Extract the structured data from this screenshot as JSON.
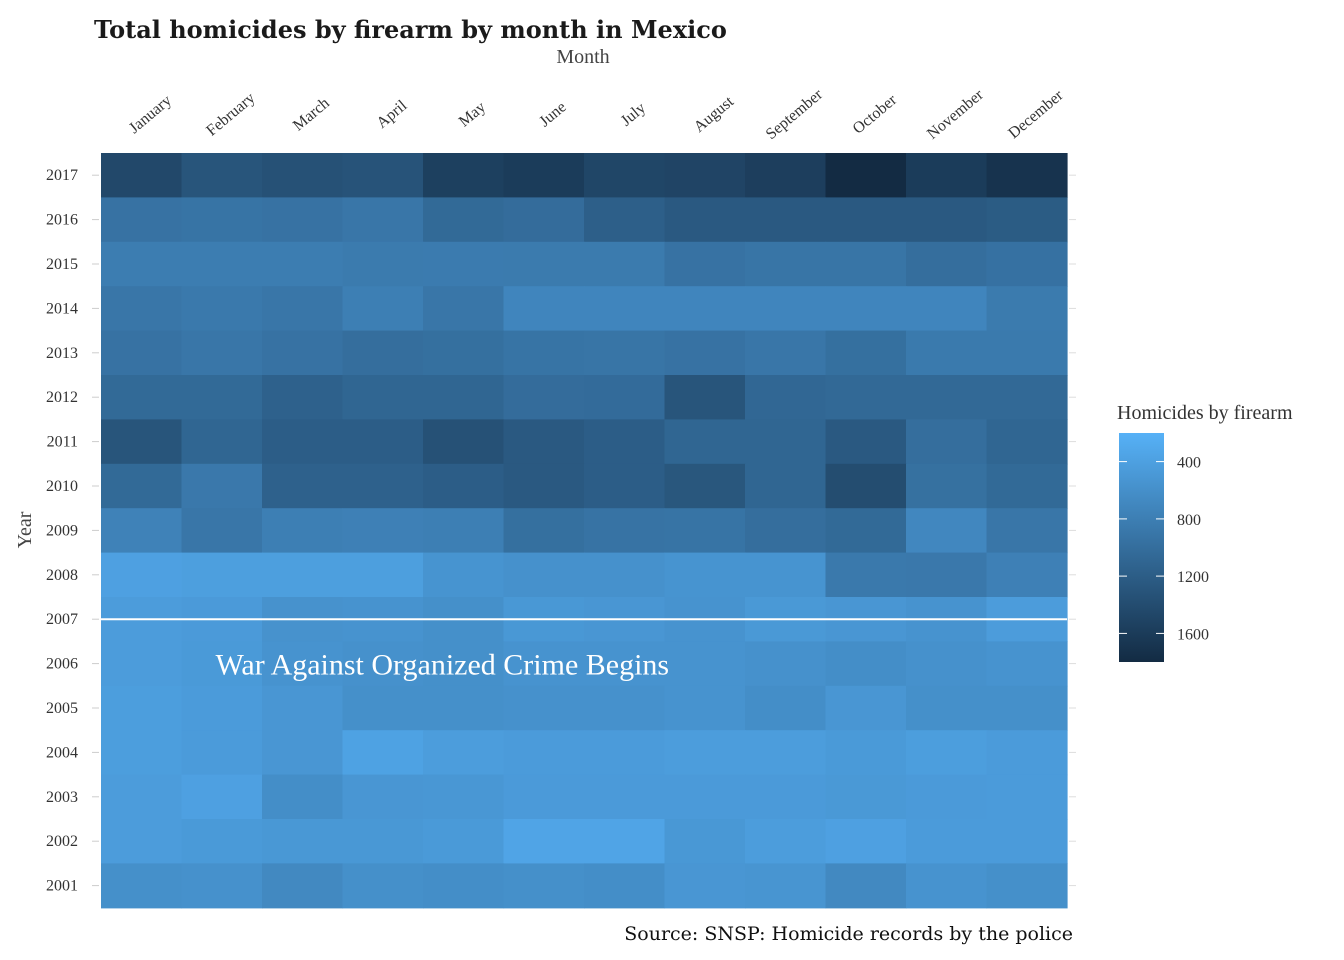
{
  "chart_data": {
    "type": "heatmap",
    "title": "Total homicides by firearm by month in Mexico",
    "xlabel": "Month",
    "ylabel": "Year",
    "x_axis_position": "top",
    "months": [
      "January",
      "February",
      "March",
      "April",
      "May",
      "June",
      "July",
      "August",
      "September",
      "October",
      "November",
      "December"
    ],
    "years": [
      2017,
      2016,
      2015,
      2014,
      2013,
      2012,
      2011,
      2010,
      2009,
      2008,
      2007,
      2006,
      2005,
      2004,
      2003,
      2002,
      2001
    ],
    "values": [
      [
        1450,
        1300,
        1350,
        1320,
        1550,
        1600,
        1480,
        1500,
        1570,
        1800,
        1600,
        1700
      ],
      [
        950,
        930,
        950,
        900,
        1050,
        1020,
        1180,
        1250,
        1250,
        1250,
        1250,
        1220
      ],
      [
        820,
        820,
        820,
        850,
        840,
        850,
        850,
        950,
        920,
        920,
        1000,
        960
      ],
      [
        900,
        870,
        900,
        800,
        900,
        720,
        720,
        720,
        720,
        720,
        720,
        850
      ],
      [
        950,
        900,
        950,
        1000,
        980,
        930,
        920,
        950,
        900,
        980,
        860,
        860
      ],
      [
        1050,
        1050,
        1150,
        1100,
        1100,
        1020,
        1030,
        1300,
        1080,
        1060,
        1060,
        1060
      ],
      [
        1300,
        1100,
        1200,
        1200,
        1350,
        1250,
        1200,
        1100,
        1100,
        1250,
        1000,
        1100
      ],
      [
        1050,
        880,
        1150,
        1150,
        1200,
        1250,
        1200,
        1280,
        1100,
        1400,
        970,
        1050
      ],
      [
        760,
        900,
        800,
        780,
        800,
        980,
        940,
        930,
        1000,
        1050,
        700,
        900
      ],
      [
        400,
        420,
        420,
        420,
        550,
        580,
        580,
        550,
        550,
        870,
        880,
        780
      ],
      [
        450,
        470,
        570,
        560,
        600,
        500,
        520,
        560,
        490,
        520,
        560,
        450
      ],
      [
        450,
        480,
        560,
        580,
        600,
        560,
        560,
        560,
        580,
        620,
        580,
        560
      ],
      [
        430,
        460,
        520,
        600,
        600,
        580,
        580,
        560,
        620,
        520,
        600,
        600
      ],
      [
        430,
        460,
        520,
        380,
        440,
        460,
        460,
        440,
        440,
        480,
        430,
        460
      ],
      [
        450,
        400,
        620,
        520,
        510,
        470,
        470,
        470,
        470,
        490,
        470,
        460
      ],
      [
        450,
        480,
        500,
        500,
        480,
        350,
        350,
        500,
        440,
        400,
        460,
        460
      ],
      [
        600,
        580,
        680,
        600,
        620,
        600,
        620,
        520,
        540,
        680,
        560,
        600
      ]
    ],
    "color_scale": {
      "low": 200,
      "high": 1800,
      "low_color": "#56b1f7",
      "high_color": "#132b43"
    },
    "legend": {
      "title": "Homicides by firearm",
      "ticks": [
        400,
        800,
        1200,
        1600
      ],
      "position": "right"
    },
    "annotations": [
      {
        "type": "hline",
        "year": 2007,
        "color": "#ffffff"
      },
      {
        "type": "text",
        "text": "War Against Organized Crime Begins",
        "month": "February",
        "year": 2006,
        "color": "#ffffff"
      }
    ]
  },
  "caption": "Source: SNSP: Homicide records by the police"
}
